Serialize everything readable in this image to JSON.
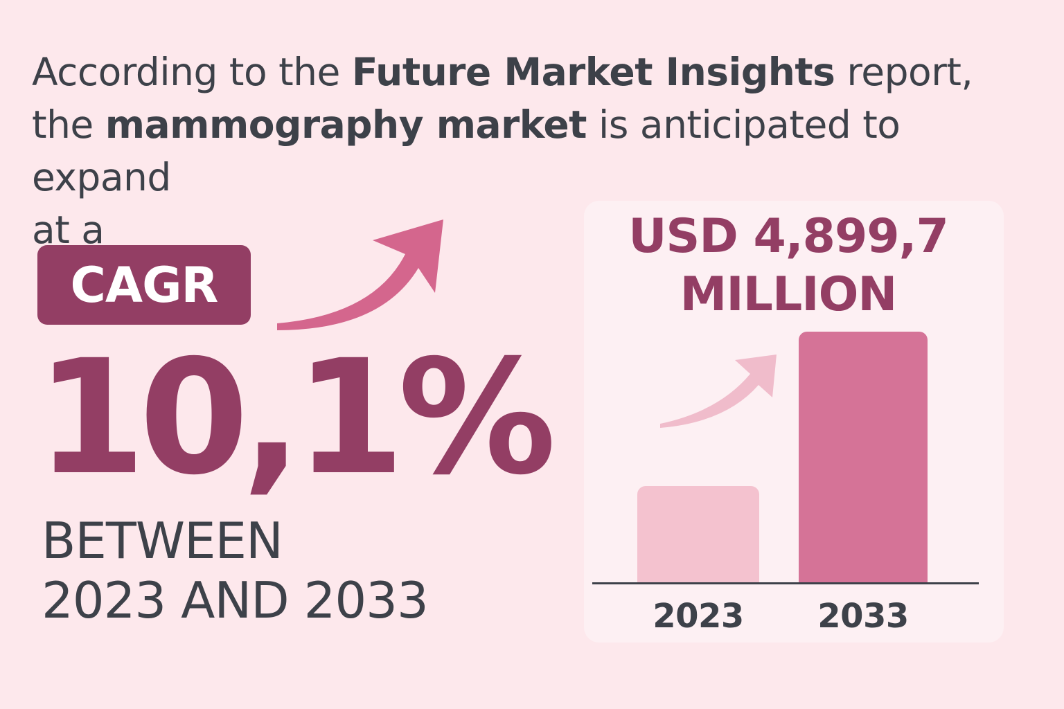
{
  "intro": {
    "part1": "According to the ",
    "bold1": "Future Market Insights",
    "part2": " report,",
    "part3": "the ",
    "bold2": "mammography market",
    "part4": " is anticipated to expand",
    "part5": "at a"
  },
  "cagr": {
    "label": "CAGR",
    "rate": "10,1%",
    "period_line1": "BETWEEN",
    "period_line2": "2023 AND 2033"
  },
  "market": {
    "value_line1": "USD 4,899,7",
    "value_line2": "MILLION"
  },
  "chart_data": {
    "type": "bar",
    "categories": [
      "2023",
      "2033"
    ],
    "values": [
      1878,
      4899.7
    ],
    "colors": [
      "#f4c2cf",
      "#d57397"
    ],
    "ylim": [
      0,
      4899.7
    ]
  },
  "colors": {
    "background": "#fde8ec",
    "accent": "#933e64",
    "arrow": "#d4668d",
    "text": "#3d4149"
  },
  "icons": {
    "big_arrow": "trend-up-arrow-icon",
    "small_arrow": "trend-up-arrow-icon"
  }
}
